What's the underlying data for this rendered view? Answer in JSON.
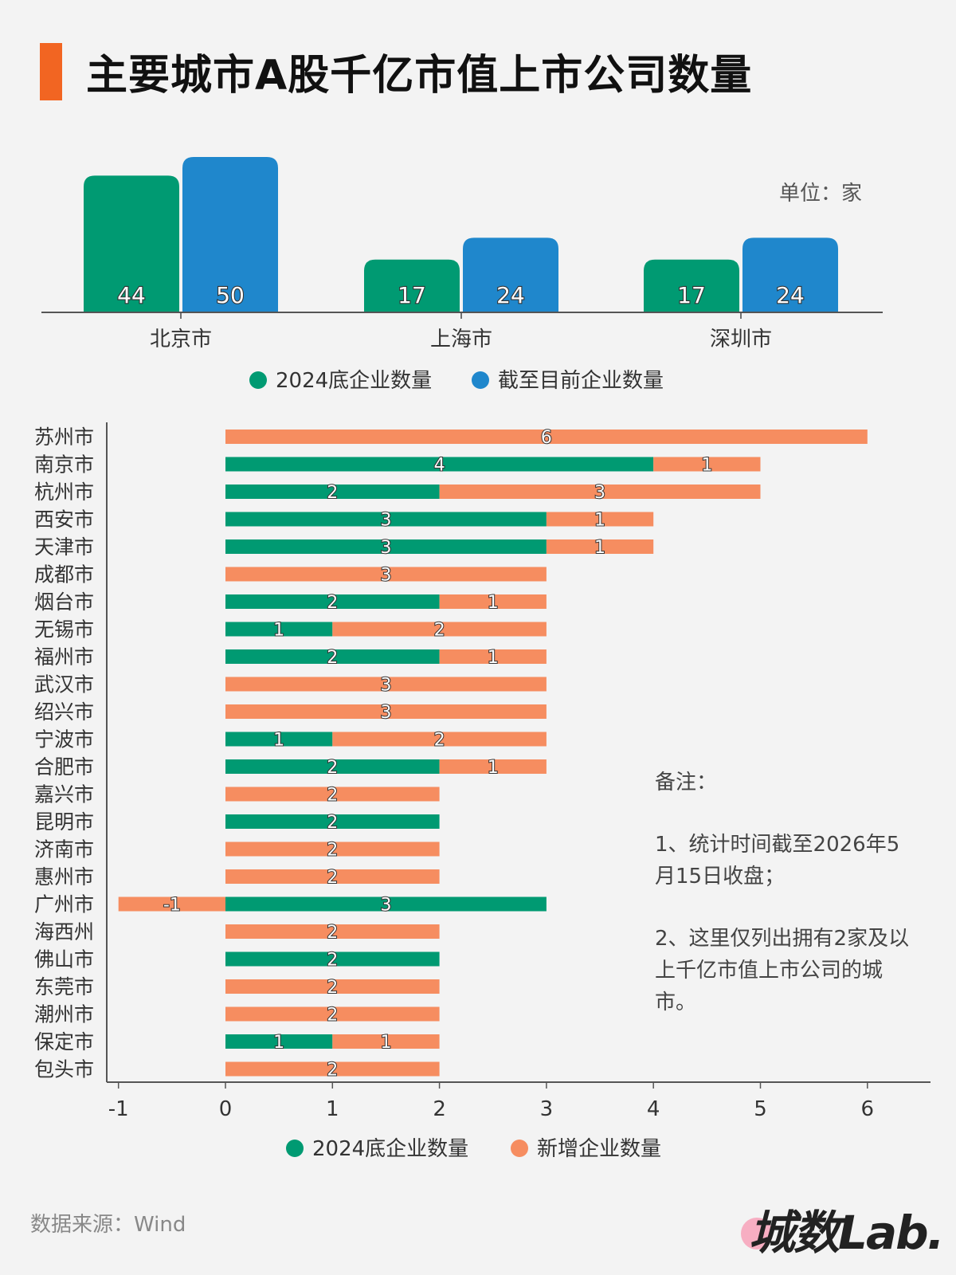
{
  "title": "主要城市A股千亿市值上市公司数量",
  "unit_label": "单位：家",
  "note": {
    "heading": "备注：",
    "line1": "1、统计时间截至2026年5月15日收盘；",
    "line2": "2、这里仅列出拥有2家及以上千亿市值上市公司的城市。"
  },
  "source": "数据来源：Wind",
  "logo": "城数Lab.",
  "colors": {
    "green": "#009a72",
    "blue": "#1f87cc",
    "orange": "#f68d60",
    "title_bar": "#f26522"
  },
  "chart_data": [
    {
      "type": "bar",
      "categories": [
        "北京市",
        "上海市",
        "深圳市"
      ],
      "series": [
        {
          "name": "2024底企业数量",
          "values": [
            44,
            17,
            17
          ]
        },
        {
          "name": "截至目前企业数量",
          "values": [
            50,
            24,
            24
          ]
        }
      ],
      "legend": "bottom",
      "grid": false
    },
    {
      "type": "bar",
      "orientation": "horizontal",
      "stacked": true,
      "categories": [
        "苏州市",
        "南京市",
        "杭州市",
        "西安市",
        "天津市",
        "成都市",
        "烟台市",
        "无锡市",
        "福州市",
        "武汉市",
        "绍兴市",
        "宁波市",
        "合肥市",
        "嘉兴市",
        "昆明市",
        "济南市",
        "惠州市",
        "广州市",
        "海西州",
        "佛山市",
        "东莞市",
        "潮州市",
        "保定市",
        "包头市"
      ],
      "series": [
        {
          "name": "2024底企业数量",
          "values": [
            0,
            4,
            2,
            3,
            3,
            0,
            2,
            1,
            2,
            0,
            0,
            1,
            2,
            0,
            2,
            0,
            0,
            3,
            0,
            2,
            0,
            0,
            1,
            0
          ]
        },
        {
          "name": "新增企业数量",
          "values": [
            6,
            1,
            3,
            1,
            1,
            3,
            1,
            2,
            1,
            3,
            3,
            2,
            1,
            2,
            0,
            2,
            2,
            -1,
            2,
            0,
            2,
            2,
            1,
            2
          ]
        }
      ],
      "xlim": [
        -1,
        6
      ],
      "x_ticks": [
        "-1",
        "0",
        "1",
        "2",
        "3",
        "4",
        "5",
        "6"
      ],
      "legend": "bottom",
      "grid": false
    }
  ]
}
